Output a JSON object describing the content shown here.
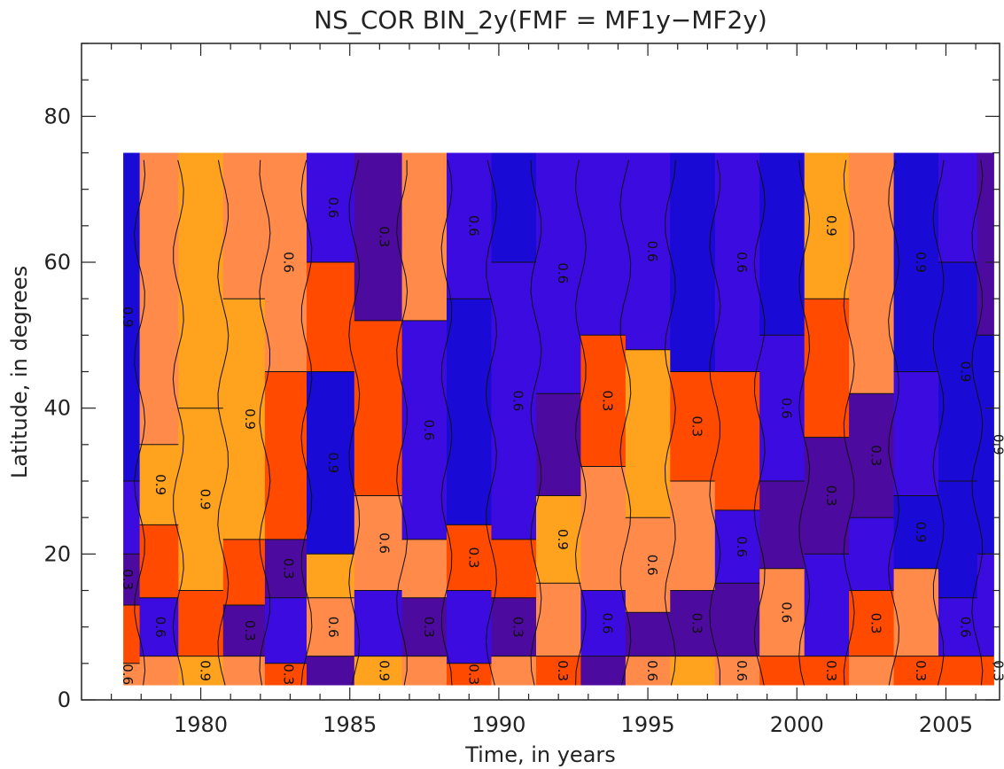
{
  "chart_data": {
    "type": "heatmap",
    "title": "NS_COR BIN_2y(FMF = MF1y−MF2y)",
    "xlabel": "Time, in years",
    "ylabel": "Latitude, in degrees",
    "xlim": [
      1976.0,
      2006.8
    ],
    "ylim": [
      0,
      90
    ],
    "data_extent": {
      "x": [
        1977.4,
        2006.6
      ],
      "y": [
        2,
        75
      ]
    },
    "x_ticks": [
      "1980",
      "1985",
      "1990",
      "1995",
      "2000",
      "2005"
    ],
    "y_ticks": [
      "0",
      "20",
      "40",
      "60",
      "80"
    ],
    "contour_labels": [
      "0.3",
      "0.6",
      "0.9"
    ],
    "colors": {
      "strong_neg": "#1a0ad6",
      "neg": "#3c0be0",
      "weak_neg": "#4c0a9e",
      "weak_pos": "#ff4a00",
      "pos": "#ff8a4a",
      "strong_pos": "#ffa21e"
    },
    "bands": [
      {
        "t": 1977.4,
        "ranges": [
          [
            2,
            5,
            0.6
          ],
          [
            5,
            13,
            0.2
          ],
          [
            13,
            20,
            -0.3
          ],
          [
            20,
            30,
            -0.6
          ],
          [
            30,
            75,
            -0.9
          ]
        ]
      },
      {
        "t": 1978.5,
        "ranges": [
          [
            2,
            6,
            0.6
          ],
          [
            6,
            14,
            -0.6
          ],
          [
            14,
            24,
            0.3
          ],
          [
            24,
            35,
            0.9
          ],
          [
            35,
            75,
            0.6
          ]
        ]
      },
      {
        "t": 1980.0,
        "ranges": [
          [
            2,
            6,
            0.9
          ],
          [
            6,
            15,
            0.3
          ],
          [
            15,
            40,
            0.9
          ],
          [
            40,
            75,
            0.95
          ]
        ]
      },
      {
        "t": 1981.5,
        "ranges": [
          [
            2,
            6,
            0.6
          ],
          [
            6,
            13,
            -0.3
          ],
          [
            13,
            22,
            0.3
          ],
          [
            22,
            55,
            0.9
          ],
          [
            55,
            75,
            0.6
          ]
        ]
      },
      {
        "t": 1982.8,
        "ranges": [
          [
            2,
            5,
            0.3
          ],
          [
            5,
            14,
            -0.6
          ],
          [
            14,
            22,
            -0.3
          ],
          [
            22,
            45,
            0.3
          ],
          [
            45,
            75,
            0.6
          ]
        ]
      },
      {
        "t": 1984.3,
        "ranges": [
          [
            2,
            6,
            -0.3
          ],
          [
            6,
            14,
            0.6
          ],
          [
            14,
            20,
            0.9
          ],
          [
            20,
            45,
            -0.9
          ],
          [
            45,
            60,
            0.3
          ],
          [
            60,
            75,
            -0.6
          ]
        ]
      },
      {
        "t": 1986.0,
        "ranges": [
          [
            2,
            6,
            0.9
          ],
          [
            6,
            15,
            -0.6
          ],
          [
            15,
            28,
            0.6
          ],
          [
            28,
            52,
            0.3
          ],
          [
            52,
            75,
            -0.3
          ]
        ]
      },
      {
        "t": 1987.5,
        "ranges": [
          [
            2,
            6,
            0.6
          ],
          [
            6,
            14,
            -0.3
          ],
          [
            14,
            22,
            0.6
          ],
          [
            22,
            52,
            -0.6
          ],
          [
            52,
            75,
            0.6
          ]
        ]
      },
      {
        "t": 1989.0,
        "ranges": [
          [
            2,
            5,
            0.3
          ],
          [
            5,
            15,
            -0.6
          ],
          [
            15,
            24,
            0.3
          ],
          [
            24,
            55,
            -0.9
          ],
          [
            55,
            75,
            -0.6
          ]
        ]
      },
      {
        "t": 1990.5,
        "ranges": [
          [
            2,
            6,
            0.6
          ],
          [
            6,
            14,
            -0.3
          ],
          [
            14,
            22,
            0.3
          ],
          [
            22,
            60,
            -0.6
          ],
          [
            60,
            75,
            -0.9
          ]
        ]
      },
      {
        "t": 1992.0,
        "ranges": [
          [
            2,
            6,
            0.3
          ],
          [
            6,
            16,
            0.6
          ],
          [
            16,
            28,
            0.9
          ],
          [
            28,
            42,
            -0.3
          ],
          [
            42,
            75,
            -0.6
          ]
        ]
      },
      {
        "t": 1993.5,
        "ranges": [
          [
            2,
            6,
            -0.3
          ],
          [
            6,
            15,
            -0.6
          ],
          [
            15,
            32,
            0.6
          ],
          [
            32,
            50,
            0.3
          ],
          [
            50,
            75,
            -0.6
          ]
        ]
      },
      {
        "t": 1995.0,
        "ranges": [
          [
            2,
            6,
            0.6
          ],
          [
            6,
            12,
            -0.3
          ],
          [
            12,
            25,
            0.6
          ],
          [
            25,
            48,
            0.9
          ],
          [
            48,
            75,
            -0.6
          ]
        ]
      },
      {
        "t": 1996.5,
        "ranges": [
          [
            2,
            6,
            0.9
          ],
          [
            6,
            15,
            -0.3
          ],
          [
            15,
            30,
            0.6
          ],
          [
            30,
            45,
            0.3
          ],
          [
            45,
            75,
            -0.9
          ]
        ]
      },
      {
        "t": 1998.0,
        "ranges": [
          [
            2,
            6,
            0.6
          ],
          [
            6,
            16,
            -0.3
          ],
          [
            16,
            26,
            -0.6
          ],
          [
            26,
            45,
            0.3
          ],
          [
            45,
            75,
            -0.6
          ]
        ]
      },
      {
        "t": 1999.5,
        "ranges": [
          [
            2,
            6,
            0.3
          ],
          [
            6,
            18,
            0.6
          ],
          [
            18,
            30,
            -0.3
          ],
          [
            30,
            50,
            -0.6
          ],
          [
            50,
            75,
            -0.9
          ]
        ]
      },
      {
        "t": 2001.0,
        "ranges": [
          [
            2,
            6,
            0.3
          ],
          [
            6,
            20,
            -0.6
          ],
          [
            20,
            36,
            -0.3
          ],
          [
            36,
            55,
            0.3
          ],
          [
            55,
            75,
            0.9
          ]
        ]
      },
      {
        "t": 2002.5,
        "ranges": [
          [
            2,
            6,
            0.6
          ],
          [
            6,
            15,
            0.3
          ],
          [
            15,
            25,
            -0.6
          ],
          [
            25,
            42,
            -0.3
          ],
          [
            42,
            75,
            0.6
          ]
        ]
      },
      {
        "t": 2004.0,
        "ranges": [
          [
            2,
            6,
            0.3
          ],
          [
            6,
            18,
            0.6
          ],
          [
            18,
            28,
            -0.9
          ],
          [
            28,
            45,
            -0.6
          ],
          [
            45,
            75,
            -0.9
          ]
        ]
      },
      {
        "t": 2005.5,
        "ranges": [
          [
            2,
            6,
            0.3
          ],
          [
            6,
            14,
            -0.6
          ],
          [
            14,
            30,
            -0.9
          ],
          [
            30,
            60,
            -0.9
          ],
          [
            60,
            75,
            -0.6
          ]
        ]
      },
      {
        "t": 2006.6,
        "ranges": [
          [
            2,
            6,
            0.3
          ],
          [
            6,
            20,
            -0.6
          ],
          [
            20,
            50,
            -0.9
          ],
          [
            50,
            75,
            -0.3
          ]
        ]
      }
    ]
  }
}
